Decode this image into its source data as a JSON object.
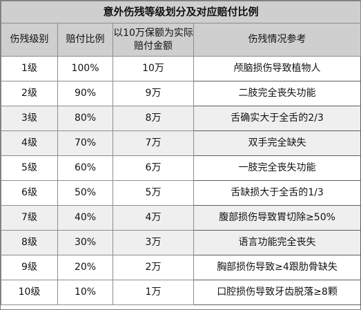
{
  "title": "意外伤残等级划分及对应赔付比例",
  "headers": {
    "grade": "伤残级别",
    "ratio": "赔付比例",
    "amount": "以10万保额为实际赔付金额",
    "description": "伤残情况参考"
  },
  "rows": [
    {
      "grade": "1级",
      "ratio": "100%",
      "amount": "10万",
      "description": "颅脑损伤导致植物人"
    },
    {
      "grade": "2级",
      "ratio": "90%",
      "amount": "9万",
      "description": "二肢完全丧失功能"
    },
    {
      "grade": "3级",
      "ratio": "80%",
      "amount": "8万",
      "description": "舌确实大于全舌的2/3"
    },
    {
      "grade": "4级",
      "ratio": "70%",
      "amount": "7万",
      "description": "双手完全缺失"
    },
    {
      "grade": "5级",
      "ratio": "60%",
      "amount": "6万",
      "description": "一肢完全丧失功能"
    },
    {
      "grade": "6级",
      "ratio": "50%",
      "amount": "5万",
      "description": "舌缺损大于全舌的1/3"
    },
    {
      "grade": "7级",
      "ratio": "40%",
      "amount": "4万",
      "description": "腹部损伤导致胃切除≥50%"
    },
    {
      "grade": "8级",
      "ratio": "30%",
      "amount": "3万",
      "description": "语言功能完全丧失"
    },
    {
      "grade": "9级",
      "ratio": "20%",
      "amount": "2万",
      "description": "胸部损伤导致≥4跟肋骨缺失"
    },
    {
      "grade": "10级",
      "ratio": "10%",
      "amount": "1万",
      "description": "口腔损伤导致牙齿脱落≥8颗"
    }
  ],
  "colors": {
    "header_bg": "#cfcfcf",
    "shaded_row_bg": "#efefef",
    "border": "#8c8c8c"
  }
}
